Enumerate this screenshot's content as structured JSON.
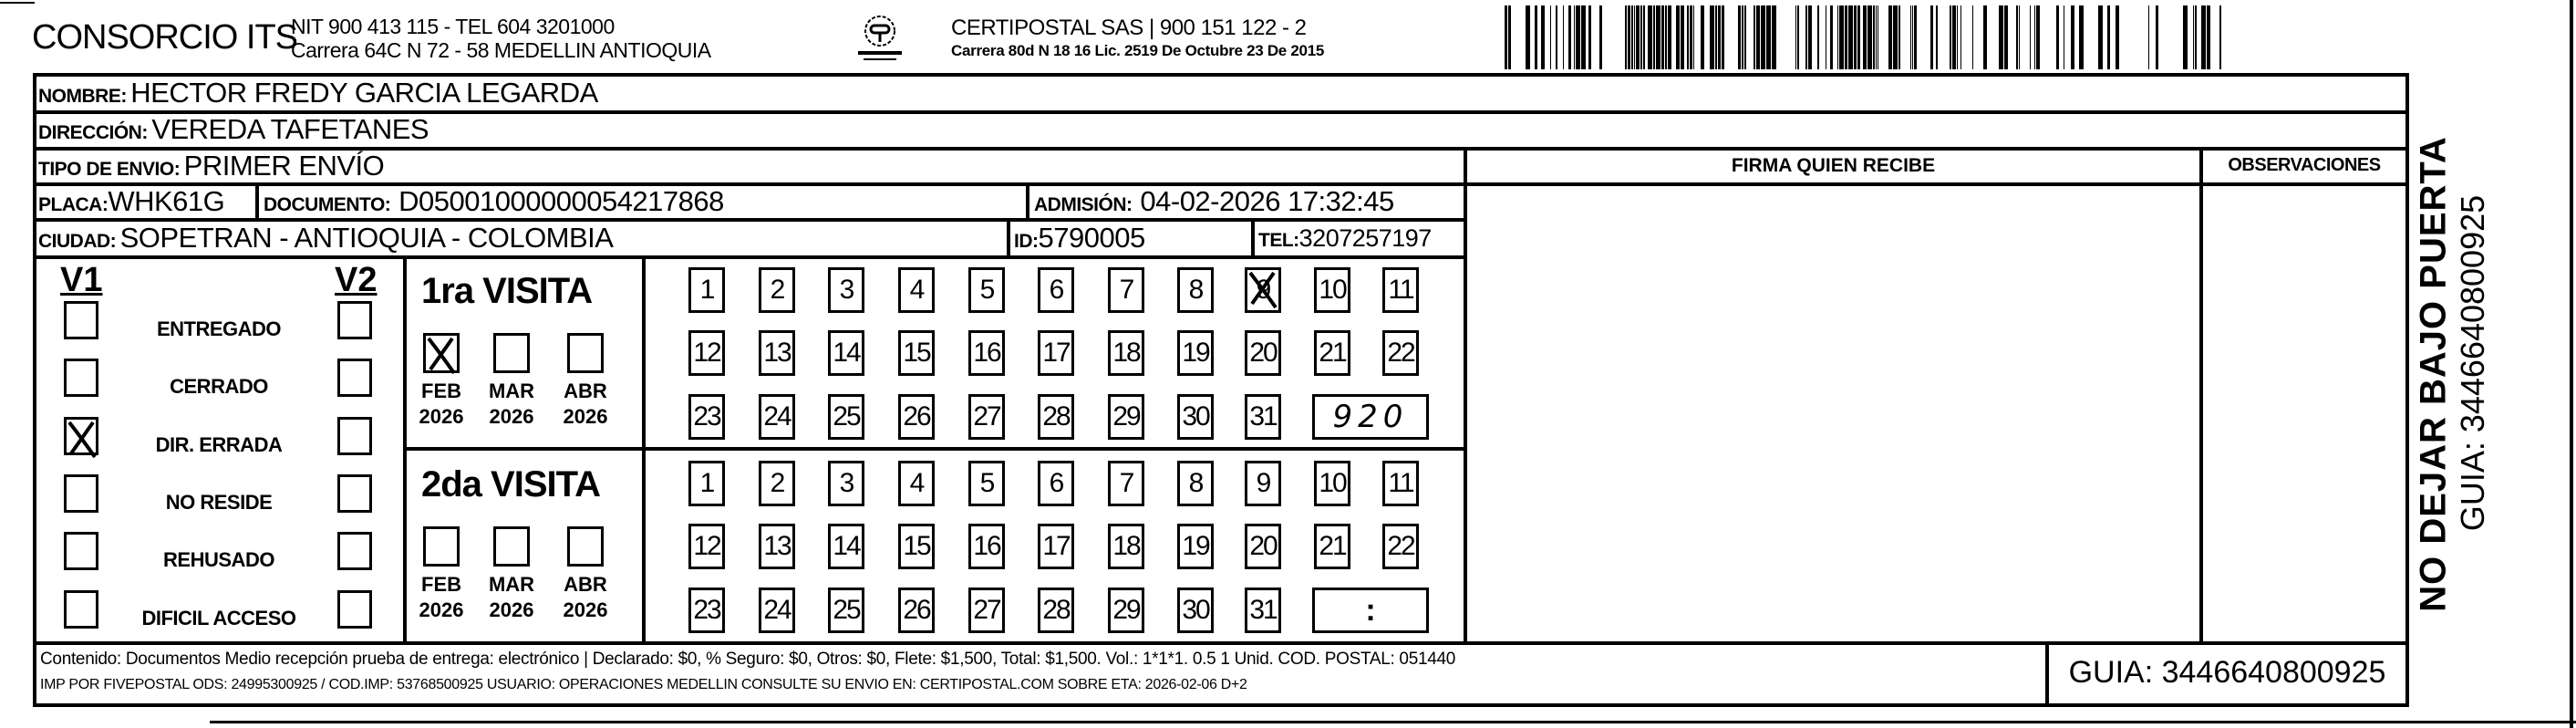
{
  "header": {
    "company": "CONSORCIO ITS",
    "company_line1": "NIT 900 413 115 - TEL 604 3201000",
    "company_line2": "Carrera 64C N 72 - 58 MEDELLIN ANTIOQUIA",
    "logo_text": "CERTIPOSTAL",
    "carrier_line1": "CERTIPOSTAL SAS | 900 151 122 - 2",
    "carrier_line2": "Carrera 80d N 18 16  Lic. 2519 De Octubre 23 De 2015"
  },
  "recipient": {
    "nombre_label": "NOMBRE:",
    "nombre": "HECTOR FREDY GARCIA LEGARDA",
    "direccion_label": "DIRECCIÓN:",
    "direccion": "VEREDA TAFETANES",
    "tipo_label": "TIPO DE ENVIO:",
    "tipo": "PRIMER ENVÍO",
    "placa_label": "PLACA:",
    "placa": "WHK61G",
    "documento_label": "DOCUMENTO:",
    "documento": "D05001000000054217868",
    "admision_label": "ADMISIÓN:",
    "admision": "04-02-2026 17:32:45",
    "ciudad_label": "CIUDAD:",
    "ciudad": "SOPETRAN - ANTIOQUIA - COLOMBIA",
    "id_label": "ID:",
    "id": "5790005",
    "tel_label": "TEL:",
    "tel": "3207257197"
  },
  "signature": {
    "firma_label": "FIRMA QUIEN RECIBE",
    "observaciones_label": "OBSERVACIONES"
  },
  "status": {
    "v1_label": "V1",
    "v2_label": "V2",
    "items": [
      {
        "label": "ENTREGADO",
        "v1": false,
        "v2": false
      },
      {
        "label": "CERRADO",
        "v1": false,
        "v2": false
      },
      {
        "label": "DIR. ERRADA",
        "v1": true,
        "v2": false
      },
      {
        "label": "NO RESIDE",
        "v1": false,
        "v2": false
      },
      {
        "label": "REHUSADO",
        "v1": false,
        "v2": false
      },
      {
        "label": "DIFICIL ACCESO",
        "v1": false,
        "v2": false
      }
    ]
  },
  "visits": [
    {
      "title": "1ra VISITA",
      "months": [
        {
          "name": "FEB",
          "year": "2026",
          "checked": true
        },
        {
          "name": "MAR",
          "year": "2026",
          "checked": false
        },
        {
          "name": "ABR",
          "year": "2026",
          "checked": false
        }
      ],
      "marked_day": 9,
      "time_note": "920"
    },
    {
      "title": "2da VISITA",
      "months": [
        {
          "name": "FEB",
          "year": "2026",
          "checked": false
        },
        {
          "name": "MAR",
          "year": "2026",
          "checked": false
        },
        {
          "name": "ABR",
          "year": "2026",
          "checked": false
        }
      ],
      "marked_day": null,
      "time_note": ":"
    }
  ],
  "side": {
    "warning": "NO DEJAR BAJO PUERTA",
    "guia": "GUIA: 3446640800925"
  },
  "footer": {
    "line1": "Contenido: Documentos Medio recepción prueba de entrega: electrónico | Declarado: $0, % Seguro: $0, Otros: $0, Flete: $1,500, Total: $1,500. Vol.: 1*1*1. 0.5  1 Unid. COD. POSTAL: 051440",
    "line2": "IMP POR FIVEPOSTAL ODS: 24995300925 / COD.IMP: 53768500925 USUARIO: OPERACIONES MEDELLIN CONSULTE SU ENVIO EN: CERTIPOSTAL.COM SOBRE ETA: 2026-02-06 D+2",
    "guia": "GUIA: 3446640800925"
  }
}
